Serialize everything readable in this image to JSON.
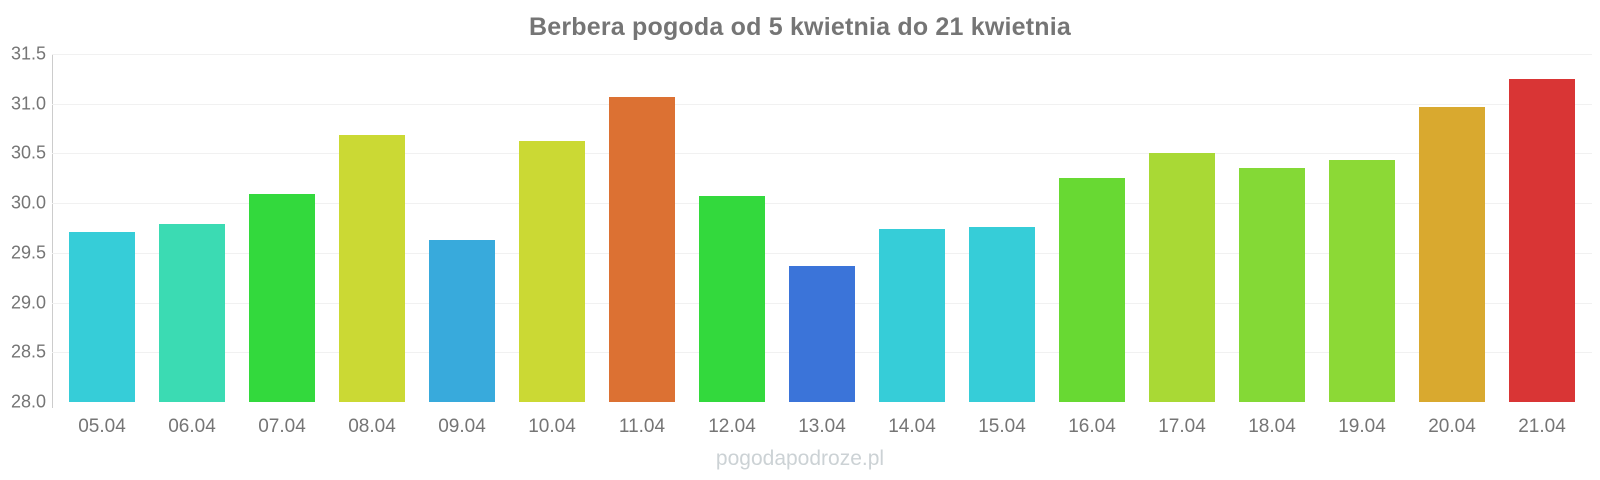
{
  "chart_data": {
    "type": "bar",
    "title": "Berbera pogoda od 5 kwietnia do 21 kwietnia",
    "categories": [
      "05.04",
      "06.04",
      "07.04",
      "08.04",
      "09.04",
      "10.04",
      "11.04",
      "12.04",
      "13.04",
      "14.04",
      "15.04",
      "16.04",
      "17.04",
      "18.04",
      "19.04",
      "20.04",
      "21.04"
    ],
    "values": [
      29.71,
      29.79,
      30.09,
      30.69,
      29.63,
      30.63,
      31.07,
      30.07,
      29.37,
      29.74,
      29.76,
      30.25,
      30.5,
      30.35,
      30.43,
      30.97,
      31.25
    ],
    "bar_colors": [
      "#36cdd8",
      "#3bdbb3",
      "#33d93d",
      "#cbd934",
      "#38aadc",
      "#cbd934",
      "#dc7133",
      "#33d93d",
      "#3b74d9",
      "#36cdd8",
      "#36cdd8",
      "#68d933",
      "#a9d935",
      "#84d936",
      "#8cd936",
      "#d9a92f",
      "#d93535"
    ],
    "ylim": [
      28.0,
      31.5
    ],
    "ytick_step": 0.5,
    "xlabel": "",
    "ylabel": "",
    "grid": true,
    "legend": false
  },
  "footer": {
    "text": "pogodapodroze.pl"
  },
  "style": {
    "title_color": "#757575",
    "tick_color": "#757575",
    "grid_color": "#f1f1f1",
    "axis_color": "#cccccc",
    "watermark_color": "#ccd2d5",
    "background": "#ffffff"
  }
}
